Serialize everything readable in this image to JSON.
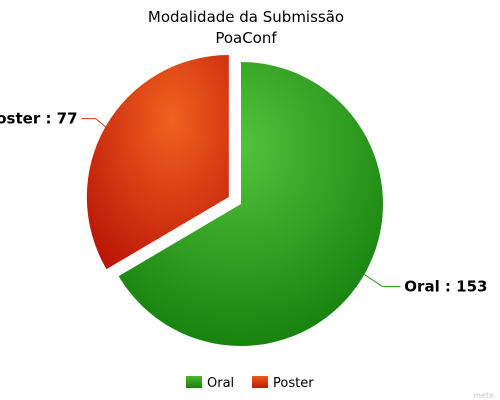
{
  "chart_data": {
    "type": "pie",
    "title": "Modalidade da Submissão",
    "subtitle": "PoaConf",
    "categories": [
      "Oral",
      "Poster"
    ],
    "values": [
      153,
      77
    ],
    "colors": [
      "#2f9e1f",
      "#d9361a"
    ],
    "label_separator": " : ",
    "legend": "bottom",
    "exploded_slice": "Poster"
  },
  "watermark": "mete"
}
